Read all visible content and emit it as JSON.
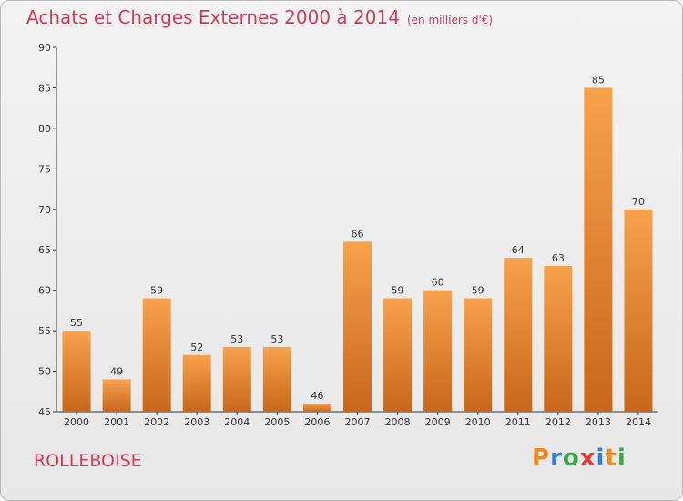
{
  "header": {
    "title": "Achats et Charges Externes 2000 à 2014",
    "subtitle": "(en milliers d'€)"
  },
  "footer": {
    "town": "ROLLEBOISE",
    "logo": "Proxiti"
  },
  "colors": {
    "title": "#d23a5a",
    "bar_light": "#f7a24c",
    "bar_dark": "#c9661a",
    "logo": [
      "#f08a1c",
      "#2f7fd6",
      "#3aa84a",
      "#e03a3a",
      "#2f7fd6",
      "#f08a1c",
      "#3aa84a"
    ]
  },
  "chart_data": {
    "type": "bar",
    "categories": [
      "2000",
      "2001",
      "2002",
      "2003",
      "2004",
      "2005",
      "2006",
      "2007",
      "2008",
      "2009",
      "2010",
      "2011",
      "2012",
      "2013",
      "2014"
    ],
    "values": [
      55,
      49,
      59,
      52,
      53,
      53,
      46,
      66,
      59,
      60,
      59,
      64,
      63,
      85,
      70
    ],
    "ylim": [
      45,
      90
    ],
    "yticks": [
      45,
      50,
      55,
      60,
      65,
      70,
      75,
      80,
      85,
      90
    ],
    "grid": false,
    "data_labels": true
  }
}
